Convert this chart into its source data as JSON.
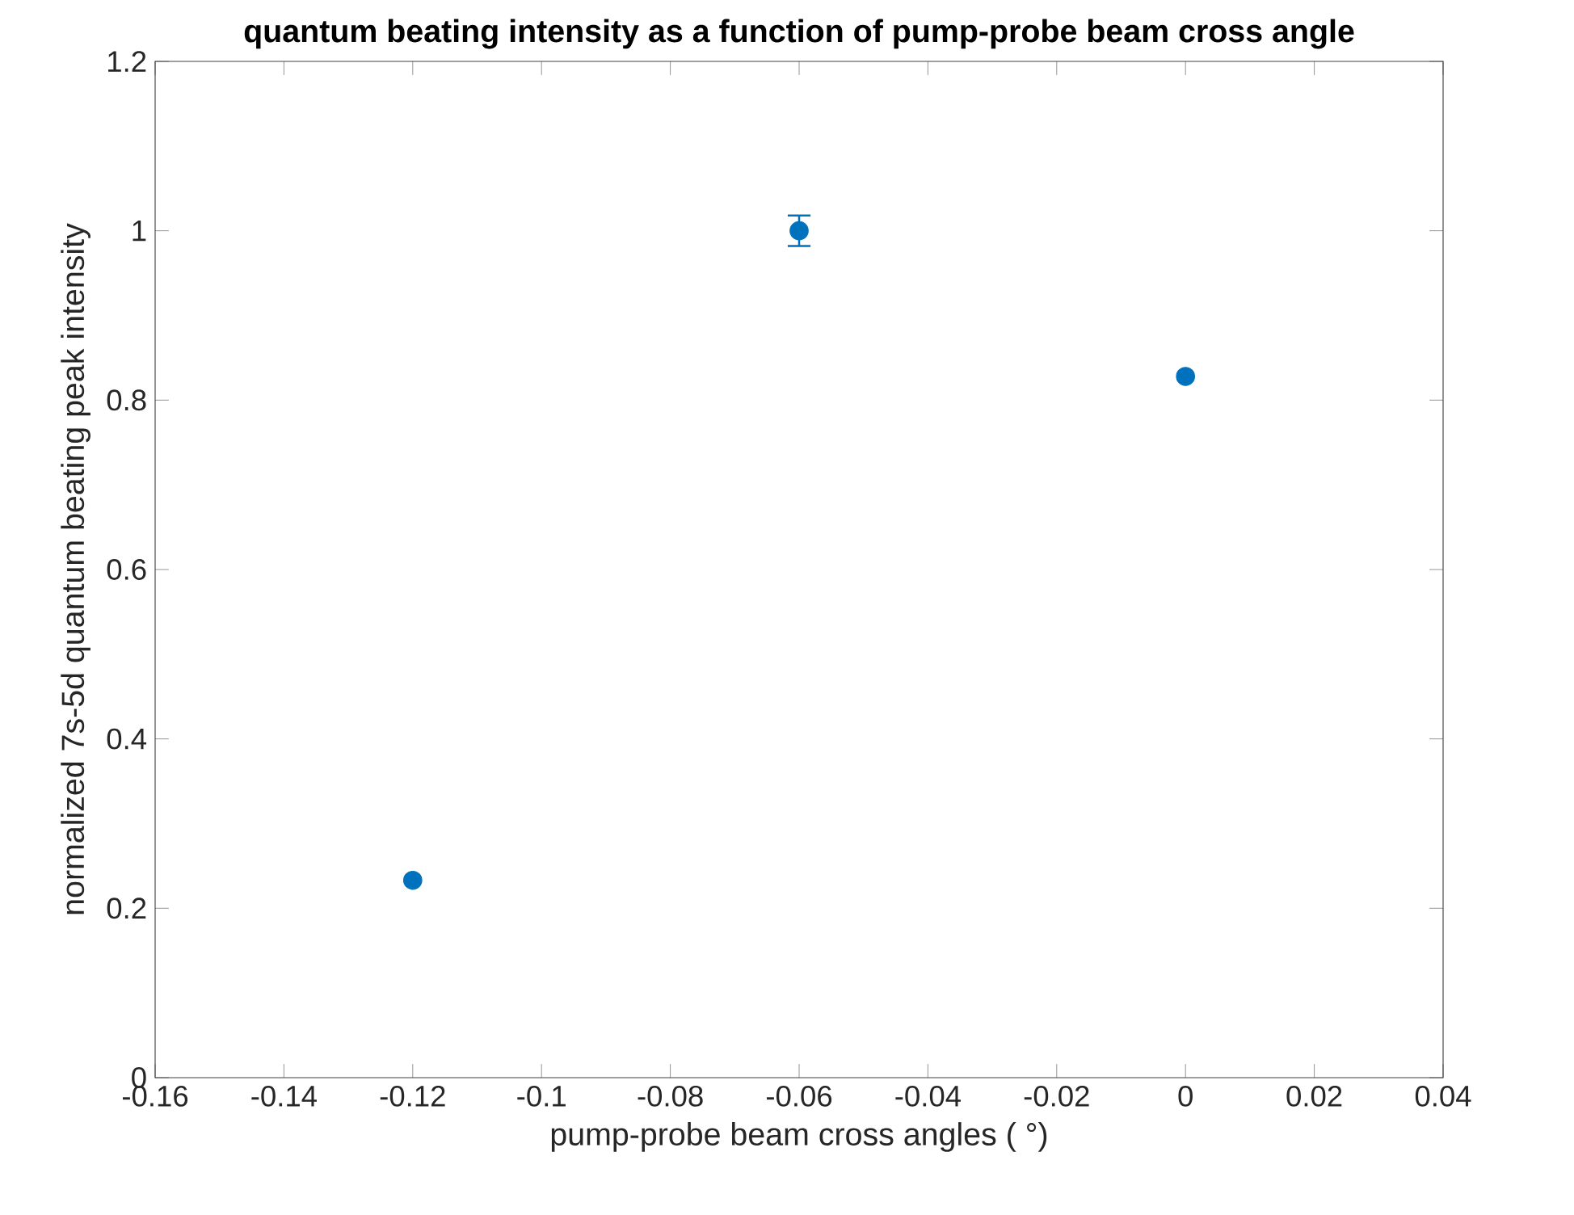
{
  "chart_data": {
    "type": "scatter",
    "title": "quantum beating intensity as a function of pump-probe beam cross angle",
    "xlabel": "pump-probe beam cross angles ( °)",
    "ylabel": "normalized 7s-5d quantum beating peak intensity",
    "x": [
      -0.12,
      -0.06,
      0
    ],
    "values": [
      0.233,
      1.0,
      0.828
    ],
    "errors": [
      null,
      0.018,
      null
    ],
    "color": "#0072bd",
    "marker": "circle",
    "xlim": [
      -0.16,
      0.04
    ],
    "xticks": [
      -0.16,
      -0.14,
      -0.12,
      -0.1,
      -0.08,
      -0.06,
      -0.04,
      -0.02,
      0,
      0.02,
      0.04
    ],
    "ylim": [
      0,
      1.2
    ],
    "yticks": [
      0,
      0.2,
      0.4,
      0.6,
      0.8,
      1,
      1.2
    ],
    "grid": false
  }
}
